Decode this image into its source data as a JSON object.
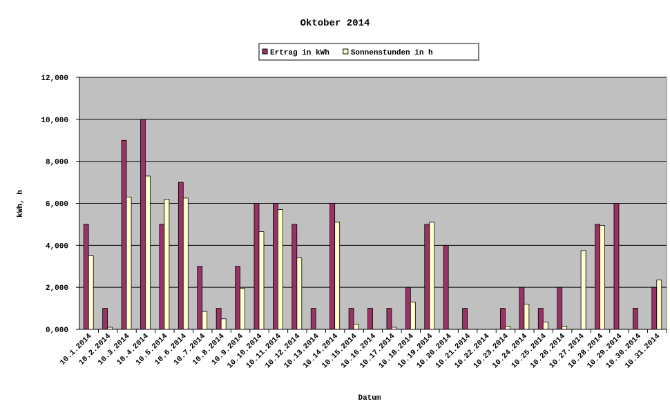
{
  "chart_data": {
    "type": "bar",
    "title": "Oktober 2014",
    "x_label": "Datum",
    "y_label": "kWh, h",
    "categories": [
      "10.1.2014",
      "10.2.2014",
      "10.3.2014",
      "10.4.2014",
      "10.5.2014",
      "10.6.2014",
      "10.7.2014",
      "10.8.2014",
      "10.9.2014",
      "10.10.2014",
      "10.11.2014",
      "10.12.2014",
      "10.13.2014",
      "10.14.2014",
      "10.15.2014",
      "10.16.2014",
      "10.17.2014",
      "10.18.2014",
      "10.19.2014",
      "10.20.2014",
      "10.21.2014",
      "10.22.2014",
      "10.23.2014",
      "10.24.2014",
      "10.25.2014",
      "10.26.2014",
      "10.27.2014",
      "10.28.2014",
      "10.29.2014",
      "10.30.2014",
      "10.31.2014"
    ],
    "series": [
      {
        "name": "Ertrag in kWh",
        "color": "#993366",
        "values": [
          5,
          1,
          9,
          10,
          5,
          7,
          3,
          1,
          3,
          6,
          6,
          5,
          1,
          6,
          1,
          1,
          1,
          2,
          5,
          4,
          1,
          0,
          1,
          2,
          1,
          2,
          0,
          5,
          6,
          1,
          2
        ]
      },
      {
        "name": "Sonnenstunden in h",
        "color": "#ffffcc",
        "values": [
          3.5,
          0.1,
          6.3,
          7.3,
          6.2,
          6.25,
          0.85,
          0.5,
          1.95,
          4.65,
          5.7,
          3.4,
          0,
          5.1,
          0.25,
          0,
          0.1,
          1.3,
          5.1,
          0,
          0,
          0,
          0.15,
          1.2,
          0.35,
          0.15,
          3.75,
          4.95,
          0,
          0,
          2.35
        ]
      }
    ],
    "ylim": [
      0,
      12
    ],
    "yticks": [
      {
        "value": 0,
        "label": "0,000"
      },
      {
        "value": 2,
        "label": "2,000"
      },
      {
        "value": 4,
        "label": "4,000"
      },
      {
        "value": 6,
        "label": "6,000"
      },
      {
        "value": 8,
        "label": "8,000"
      },
      {
        "value": 10,
        "label": "10,000"
      },
      {
        "value": 12,
        "label": "12,000"
      }
    ],
    "grid": true,
    "plot_background": "#c0c0c0",
    "legend_position": "top"
  }
}
